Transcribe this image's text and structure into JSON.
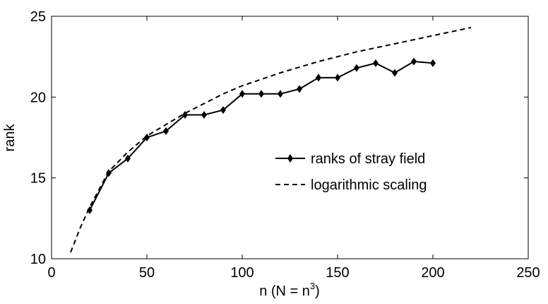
{
  "chart_data": {
    "type": "line",
    "xlabel": "n (N = n",
    "xlabel_sup": "3",
    "xlabel_close": ")",
    "ylabel": "rank",
    "xlim": [
      0,
      250
    ],
    "ylim": [
      10,
      25
    ],
    "xticks": [
      0,
      50,
      100,
      150,
      200,
      250
    ],
    "yticks": [
      10,
      15,
      20,
      25
    ],
    "grid": false,
    "legend_position": "center-right",
    "series": [
      {
        "name": "ranks of stray field",
        "style": "solid-diamond",
        "color": "#000000",
        "x": [
          20,
          30,
          40,
          50,
          60,
          70,
          80,
          90,
          100,
          110,
          120,
          130,
          140,
          150,
          160,
          170,
          180,
          190,
          200
        ],
        "y": [
          13,
          15.3,
          16.2,
          17.5,
          17.9,
          18.9,
          18.9,
          19.2,
          20.2,
          20.2,
          20.2,
          20.5,
          21.2,
          21.2,
          21.8,
          22.1,
          21.5,
          22.2,
          22.1
        ]
      },
      {
        "name": "logarithmic scaling",
        "style": "dashed",
        "color": "#000000",
        "x": [
          10,
          15,
          20,
          30,
          40,
          50,
          60,
          70,
          80,
          90,
          100,
          120,
          140,
          160,
          180,
          200,
          220
        ],
        "y": [
          10.4,
          11.9,
          13.2,
          15.4,
          16.6,
          17.6,
          18.3,
          19.0,
          19.6,
          20.2,
          20.7,
          21.5,
          22.2,
          22.8,
          23.3,
          23.8,
          24.3
        ]
      }
    ]
  }
}
